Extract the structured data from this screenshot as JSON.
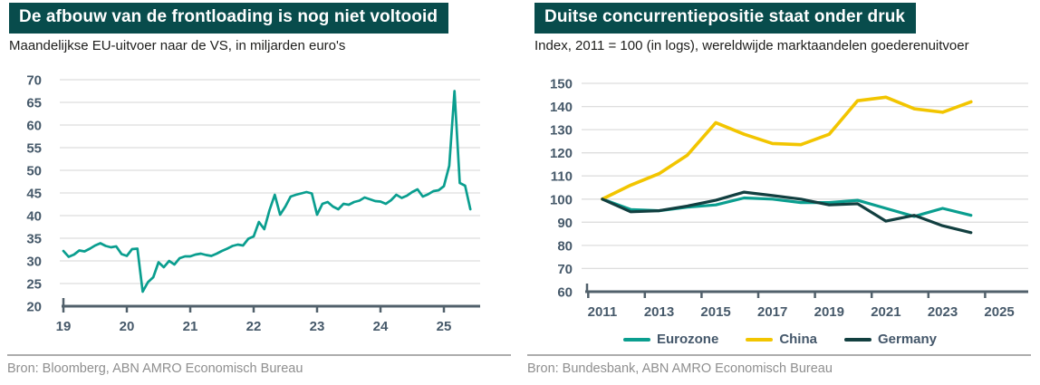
{
  "colors": {
    "title_bar_bg": "#084C4C",
    "title_text": "#FFFFFF",
    "subtitle_text": "#1D1D1B",
    "axis_line": "#51606B",
    "tick_label": "#46596A",
    "gridline": "#DEDEDE",
    "source_text": "#8F8F8F",
    "source_divider": "#ACACAC",
    "legend_label": "#44576A",
    "eurozone_teal": "#0A9E8F",
    "china_yellow": "#F2C500",
    "germany_dark_green": "#123F40"
  },
  "panels": [
    {
      "title": "De afbouw van de frontloading is nog niet voltooid",
      "subtitle": "Maandelijkse EU-uitvoer naar de VS, in miljarden euro's",
      "source": "Bron: Bloomberg, ABN AMRO Economisch Bureau"
    },
    {
      "title": "Duitse concurrentiepositie staat onder druk",
      "subtitle": "Index, 2011 = 100 (in logs), wereldwijde marktaandelen goederenuitvoer",
      "source": "Bron: Bundesbank, ABN AMRO Economisch Bureau"
    }
  ],
  "chart_data": [
    {
      "type": "line",
      "title": "De afbouw van de frontloading is nog niet voltooid",
      "subtitle": "Maandelijkse EU-uitvoer naar de VS, in miljarden euro's",
      "frequency": "monthly",
      "ylim": [
        20,
        70
      ],
      "ytick_step": 5,
      "xlim": [
        2019,
        2025.571
      ],
      "grid": "horizontal",
      "legend_position": "none",
      "xticks": [
        {
          "t": 2019,
          "c": 2019,
          "label": "19"
        },
        {
          "t": 2020,
          "c": 2020,
          "label": "20"
        },
        {
          "t": 2021,
          "c": 2021,
          "label": "21"
        },
        {
          "t": 2022,
          "c": 2022,
          "label": "22"
        },
        {
          "t": 2023,
          "c": 2023,
          "label": "23"
        },
        {
          "t": 2024,
          "c": 2024,
          "label": "24"
        },
        {
          "t": 2025,
          "c": 2025,
          "label": "25"
        }
      ],
      "series": [
        {
          "name": "Maandelijkse EU-uitvoer naar de VS (mld euro)",
          "color": "#0A9E8F",
          "width": 2.7,
          "x_start": 2019.0,
          "x_step": 0.083333,
          "values": [
            32.2,
            30.9,
            31.4,
            32.3,
            32.1,
            32.7,
            33.4,
            33.9,
            33.3,
            33.0,
            33.2,
            31.5,
            31.1,
            32.6,
            32.7,
            23.2,
            25.3,
            26.4,
            29.7,
            28.6,
            30.0,
            29.2,
            30.6,
            31.0,
            31.0,
            31.4,
            31.6,
            31.3,
            31.1,
            31.6,
            32.2,
            32.7,
            33.3,
            33.6,
            33.4,
            34.9,
            35.4,
            38.6,
            37.0,
            41.2,
            44.6,
            40.2,
            42.0,
            44.2,
            44.6,
            44.9,
            45.2,
            44.9,
            40.2,
            42.6,
            43.0,
            42.0,
            41.4,
            42.6,
            42.4,
            43.0,
            43.3,
            44.0,
            43.6,
            43.2,
            43.1,
            42.6,
            43.4,
            44.6,
            43.9,
            44.4,
            45.2,
            45.8,
            44.2,
            44.7,
            45.4,
            45.6,
            46.5,
            51.0,
            67.5,
            47.2,
            46.6,
            41.4
          ]
        }
      ]
    },
    {
      "type": "line",
      "title": "Duitse concurrentiepositie staat onder druk",
      "subtitle": "Index, 2011 = 100 (in logs), wereldwijde marktaandelen goederenuitvoer",
      "frequency": "annual",
      "ylim": [
        60,
        150
      ],
      "ytick_step": 10,
      "xlim": [
        2010.46,
        2026.02
      ],
      "grid": "horizontal",
      "legend_position": "bottom",
      "x": [
        2011,
        2012,
        2013,
        2014,
        2015,
        2016,
        2017,
        2018,
        2019,
        2020,
        2021,
        2022,
        2023,
        2024
      ],
      "xticks": [
        {
          "t": 2010.5,
          "c": 2011,
          "label": "2011"
        },
        {
          "t": 2012.5,
          "c": 2013,
          "label": "2013"
        },
        {
          "t": 2014.5,
          "c": 2015,
          "label": "2015"
        },
        {
          "t": 2016.5,
          "c": 2017,
          "label": "2017"
        },
        {
          "t": 2018.5,
          "c": 2019,
          "label": "2019"
        },
        {
          "t": 2020.5,
          "c": 2021,
          "label": "2021"
        },
        {
          "t": 2022.5,
          "c": 2023,
          "label": "2023"
        },
        {
          "t": 2024.5,
          "c": 2025,
          "label": "2025"
        }
      ],
      "series": [
        {
          "name": "Eurozone",
          "color": "#0A9E8F",
          "width": 3.2,
          "values": [
            100,
            95.5,
            95.0,
            96.5,
            97.5,
            100.5,
            100.0,
            98.5,
            98.5,
            99.5,
            96.0,
            92.5,
            96.0,
            93.0
          ]
        },
        {
          "name": "China",
          "color": "#F2C500",
          "width": 3.6,
          "values": [
            100,
            106,
            111,
            119,
            133,
            128,
            124,
            123.5,
            128,
            142.5,
            144,
            139,
            137.5,
            142
          ]
        },
        {
          "name": "Germany",
          "color": "#123F40",
          "width": 3.2,
          "values": [
            100,
            94.5,
            95.0,
            97.0,
            99.5,
            103.0,
            101.5,
            100.0,
            97.5,
            98.0,
            90.5,
            93.0,
            88.5,
            85.5
          ]
        }
      ]
    }
  ]
}
